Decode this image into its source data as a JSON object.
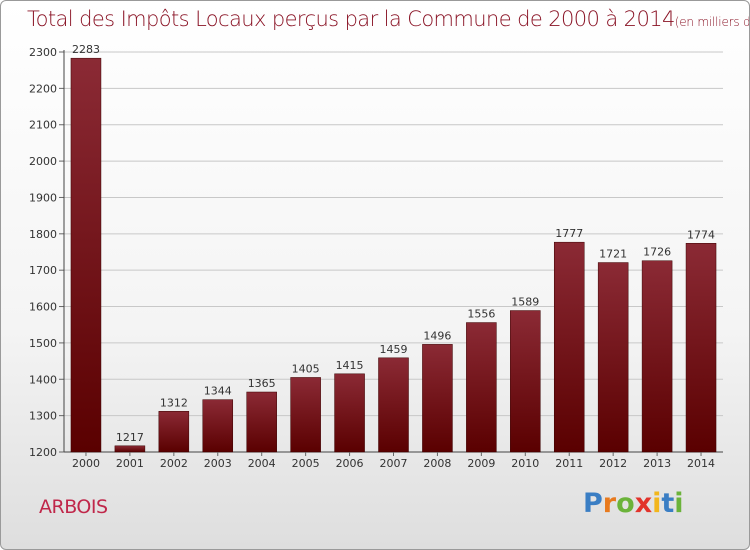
{
  "chart_data": {
    "type": "bar",
    "title": "Total des Impôts Locaux perçus par la Commune de 2000 à 2014",
    "unit_label": "(en milliers d'€)",
    "categories": [
      "2000",
      "2001",
      "2002",
      "2003",
      "2004",
      "2005",
      "2006",
      "2007",
      "2008",
      "2009",
      "2010",
      "2011",
      "2012",
      "2013",
      "2014"
    ],
    "values": [
      2283,
      1217,
      1312,
      1344,
      1365,
      1405,
      1415,
      1459,
      1496,
      1556,
      1589,
      1777,
      1721,
      1726,
      1774
    ],
    "yticks": [
      1200,
      1300,
      1400,
      1500,
      1600,
      1700,
      1800,
      1900,
      2000,
      2100,
      2200,
      2300
    ],
    "ylim": [
      1200,
      2300
    ],
    "xlabel": "",
    "ylabel": "",
    "grid": true,
    "colors": {
      "bar_top": "#8b2a35",
      "bar_bottom": "#5a0000",
      "grid": "#c8c8c8",
      "title": "#8a1426"
    }
  },
  "commune": "ARBOIS",
  "logo": {
    "letters": [
      "P",
      "r",
      "o",
      "x",
      "i",
      "t",
      "i"
    ],
    "colors": [
      "#3a7ec4",
      "#e87a1e",
      "#6bb33a",
      "#e2332b",
      "#f2b61c",
      "#3a7ec4",
      "#6bb33a"
    ]
  }
}
